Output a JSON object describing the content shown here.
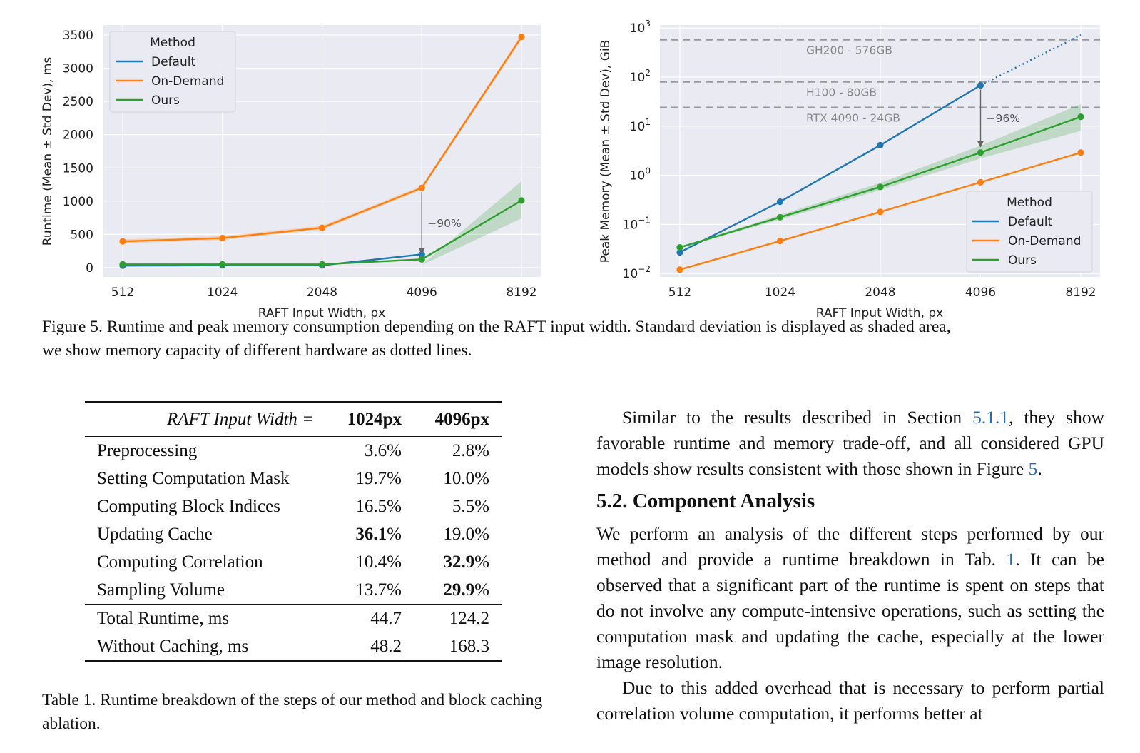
{
  "chart_data": [
    {
      "type": "line",
      "xlabel": "RAFT Input Width, px",
      "ylabel": "Runtime (Mean ± Std Dev), ms",
      "x_scale": "log2",
      "x": [
        512,
        1024,
        2048,
        4096,
        8192
      ],
      "x_tick_labels": [
        "512",
        "1024",
        "2048",
        "4096",
        "8192"
      ],
      "y_ticks": [
        0,
        500,
        1000,
        1500,
        2000,
        2500,
        3000,
        3500
      ],
      "y_tick_labels": [
        "0",
        "500",
        "1000",
        "1500",
        "2000",
        "2500",
        "3000",
        "3500"
      ],
      "ylim": [
        -140,
        3650
      ],
      "grid": true,
      "legend_title": "Method",
      "legend_position": "top-left",
      "series": [
        {
          "name": "Default",
          "color": "#1f77b4",
          "x": [
            512,
            1024,
            2048,
            4096
          ],
          "values": [
            30,
            35,
            35,
            200
          ]
        },
        {
          "name": "On-Demand",
          "color": "#ff7f0e",
          "x": [
            512,
            1024,
            2048,
            4096,
            8192
          ],
          "values": [
            395,
            445,
            600,
            1200,
            3470
          ],
          "std": [
            30,
            30,
            30,
            30,
            40
          ]
        },
        {
          "name": "Ours",
          "color": "#2ca02c",
          "x": [
            512,
            1024,
            2048,
            4096,
            8192
          ],
          "values": [
            50,
            50,
            50,
            125,
            1010
          ],
          "std_lower": [
            20,
            20,
            20,
            40,
            740
          ],
          "std_upper": [
            20,
            20,
            20,
            40,
            1300
          ]
        }
      ],
      "annotation": {
        "text": "−90%",
        "x": 4096,
        "from": 1200,
        "to": 125
      }
    },
    {
      "type": "line",
      "xlabel": "RAFT Input Width, px",
      "ylabel": "Peak Memory (Mean ± Std Dev), GiB",
      "x_scale": "log2",
      "y_scale": "log10",
      "x": [
        512,
        1024,
        2048,
        4096,
        8192
      ],
      "x_tick_labels": [
        "512",
        "1024",
        "2048",
        "4096",
        "8192"
      ],
      "y_ticks": [
        0.01,
        0.1,
        1,
        10,
        100,
        1000
      ],
      "y_tick_labels": [
        [
          "10",
          "−2"
        ],
        [
          "10",
          "−1"
        ],
        [
          "10",
          "0"
        ],
        [
          "10",
          "1"
        ],
        [
          "10",
          "2"
        ],
        [
          "10",
          "3"
        ]
      ],
      "ylim": [
        0.0085,
        1150
      ],
      "grid": true,
      "legend_title": "Method",
      "legend_position": "bottom-right",
      "series": [
        {
          "name": "Default",
          "color": "#1f77b4",
          "x": [
            512,
            1024,
            2048,
            4096
          ],
          "values": [
            0.027,
            0.29,
            4.1,
            68
          ],
          "extrapolated_to": {
            "x": 8192,
            "value": 720
          }
        },
        {
          "name": "On-Demand",
          "color": "#ff7f0e",
          "x": [
            512,
            1024,
            2048,
            4096,
            8192
          ],
          "values": [
            0.012,
            0.046,
            0.18,
            0.72,
            2.9
          ]
        },
        {
          "name": "Ours",
          "color": "#2ca02c",
          "x": [
            512,
            1024,
            2048,
            4096,
            8192
          ],
          "values": [
            0.034,
            0.14,
            0.58,
            2.9,
            15.5
          ],
          "std_lower": [
            0.033,
            0.125,
            0.5,
            2.2,
            8
          ],
          "std_upper": [
            0.035,
            0.155,
            0.7,
            4.0,
            28
          ]
        }
      ],
      "hardware_lines": [
        {
          "label": "GH200 - 576GB",
          "value": 576
        },
        {
          "label": "H100 - 80GB",
          "value": 80
        },
        {
          "label": "RTX 4090 - 24GB",
          "value": 24
        }
      ],
      "annotation": {
        "text": "−96%",
        "x": 4096,
        "from": 68,
        "to": 2.9
      }
    }
  ],
  "figure_caption": {
    "line1": "Figure 5. Runtime and peak memory consumption depending on the RAFT input width. Standard deviation is displayed as shaded area,",
    "line2": "we show memory capacity of different hardware as dotted lines."
  },
  "table": {
    "header": {
      "label": "RAFT Input Width =",
      "cols": [
        "1024px",
        "4096px"
      ]
    },
    "rows": [
      {
        "label": "Preprocessing",
        "a": "3.6",
        "b": "2.8"
      },
      {
        "label": "Setting Computation Mask",
        "a": "19.7",
        "b": "10.0"
      },
      {
        "label": "Computing Block Indices",
        "a": "16.5",
        "b": "5.5"
      },
      {
        "label": "Updating Cache",
        "a": "36.1",
        "b": "19.0"
      },
      {
        "label": "Computing Correlation",
        "a": "10.4",
        "b": "32.9"
      },
      {
        "label": "Sampling Volume",
        "a": "13.7",
        "b": "29.9"
      }
    ],
    "pct": "%",
    "totals": [
      {
        "label": "Total Runtime, ms",
        "a": "44.7",
        "b": "124.2"
      },
      {
        "label": "Without Caching, ms",
        "a": "48.2",
        "b": "168.3"
      }
    ],
    "caption": "Table 1. Runtime breakdown of the steps of our method and block caching ablation."
  },
  "body": {
    "p1_a": "Similar to the results described in Section ",
    "p1_ref1": "5.1.1",
    "p1_b": ", they show favorable runtime and memory trade-off, and all considered GPU models show results consistent with those shown in Figure ",
    "p1_ref2": "5",
    "p1_c": ".",
    "heading": "5.2. Component Analysis",
    "p2_a": "We perform an analysis of the different steps performed by our method and provide a runtime breakdown in Tab. ",
    "p2_ref": "1",
    "p2_b": ". It can be observed that a significant part of the runtime is spent on steps that do not involve any compute-intensive operations, such as setting the computation mask and updating the cache, especially at the lower image resolution.",
    "p3": "Due to this added overhead that is necessary to perform partial correlation volume computation, it performs better at"
  }
}
